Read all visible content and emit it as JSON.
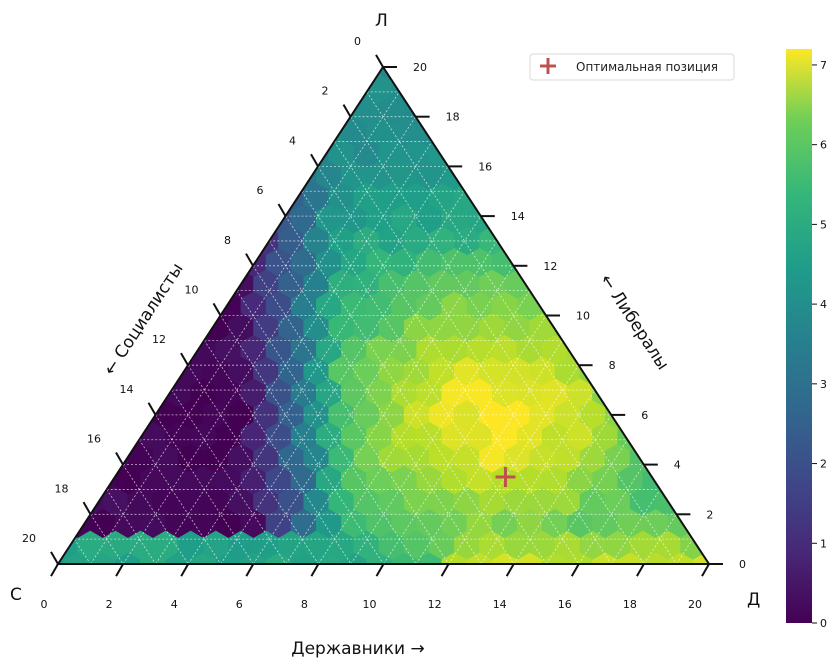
{
  "chart_data": {
    "type": "heatmap",
    "subtype": "ternary-hexbin",
    "scale": 20,
    "corners": {
      "top": "Л",
      "left": "С",
      "right": "Д"
    },
    "axes": {
      "bottom": {
        "label": "Державники →",
        "ticks": [
          0,
          2,
          4,
          6,
          8,
          10,
          12,
          14,
          16,
          18,
          20
        ]
      },
      "right": {
        "label": "← Либералы",
        "ticks": [
          0,
          2,
          4,
          6,
          8,
          10,
          12,
          14,
          16,
          18,
          20
        ]
      },
      "left": {
        "label": "← Социалисты",
        "ticks": [
          0,
          2,
          4,
          6,
          8,
          10,
          12,
          14,
          16,
          18,
          20
        ]
      }
    },
    "colorbar": {
      "colormap": "viridis",
      "min": 0,
      "max": 7.2,
      "ticks": [
        0,
        1,
        2,
        3,
        4,
        5,
        6,
        7
      ]
    },
    "legend": {
      "label": "Оптимальная позиция",
      "marker": "plus",
      "color": "#c0504d",
      "placement": "top-right"
    },
    "optimal_point": {
      "d": 12,
      "l": 3.5,
      "s": 4.5
    },
    "density_model": {
      "base": 3.4,
      "peak": {
        "d": 10.5,
        "l": 6,
        "value": 7.1,
        "spread": 4.2
      },
      "low_region": {
        "side": "left",
        "value": 0.1
      },
      "right_edge_high": 6.5
    },
    "grid": true
  }
}
